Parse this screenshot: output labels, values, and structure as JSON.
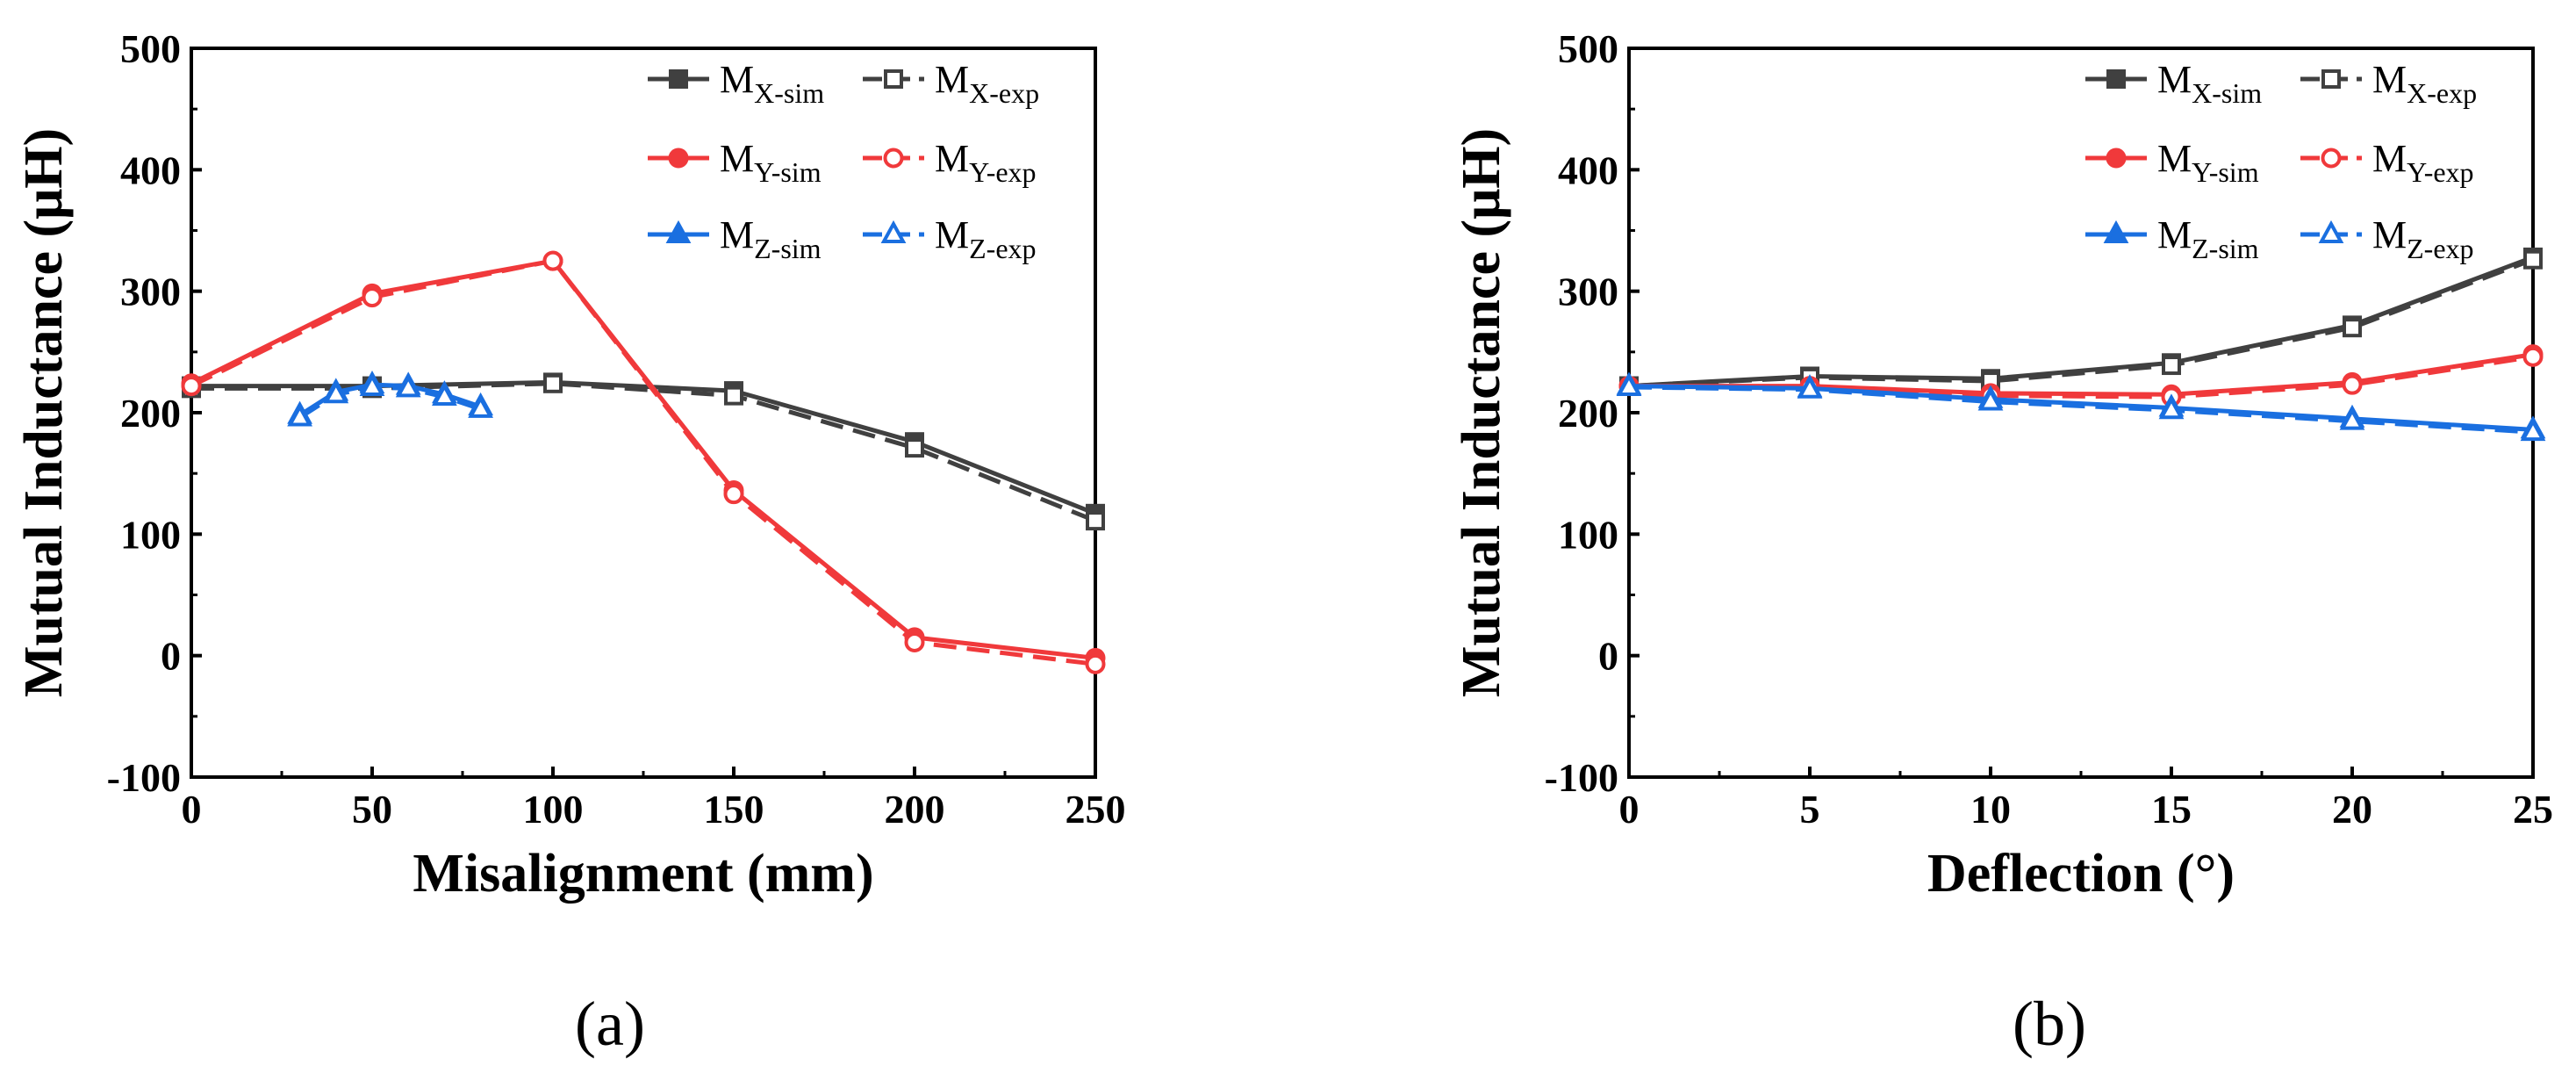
{
  "chart_data": [
    {
      "type": "line",
      "panel_label": "(a)",
      "xlabel": "Misalignment (mm)",
      "ylabel": "Mutual Inductance (μH)",
      "xlim": [
        0,
        250
      ],
      "ylim": [
        -100,
        500
      ],
      "xticks": [
        0,
        50,
        100,
        150,
        200,
        250
      ],
      "yticks": [
        -100,
        0,
        100,
        200,
        300,
        400,
        500
      ],
      "grid": false,
      "legend_position": "top-right",
      "series": [
        {
          "name": "M",
          "sub": "X-sim",
          "color": "#404040",
          "style": "solid",
          "marker": "square-filled",
          "x": [
            0,
            50,
            100,
            150,
            200,
            250
          ],
          "y": [
            222,
            222,
            225,
            218,
            176,
            117
          ]
        },
        {
          "name": "M",
          "sub": "X-exp",
          "color": "#404040",
          "style": "dashed",
          "marker": "square-open",
          "x": [
            0,
            50,
            100,
            150,
            200,
            250
          ],
          "y": [
            220,
            220,
            224,
            214,
            171,
            111
          ]
        },
        {
          "name": "M",
          "sub": "Y-sim",
          "color": "#f0393b",
          "style": "solid",
          "marker": "circle-filled",
          "x": [
            0,
            50,
            100,
            150,
            200,
            250
          ],
          "y": [
            224,
            298,
            325,
            136,
            15,
            -2
          ]
        },
        {
          "name": "M",
          "sub": "Y-exp",
          "color": "#f0393b",
          "style": "dashed",
          "marker": "circle-open",
          "x": [
            0,
            50,
            100,
            150,
            200,
            250
          ],
          "y": [
            222,
            295,
            325,
            133,
            11,
            -7
          ]
        },
        {
          "name": "M",
          "sub": "Z-sim",
          "color": "#1a6fe0",
          "style": "solid",
          "marker": "triangle-filled",
          "x": [
            30,
            40,
            50,
            60,
            70,
            80
          ],
          "y": [
            198,
            217,
            223,
            222,
            215,
            205
          ]
        },
        {
          "name": "M",
          "sub": "Z-exp",
          "color": "#1a6fe0",
          "style": "dashed",
          "marker": "triangle-open",
          "x": [
            30,
            40,
            50,
            60,
            70,
            80
          ],
          "y": [
            196,
            215,
            221,
            220,
            213,
            203
          ]
        }
      ]
    },
    {
      "type": "line",
      "panel_label": "(b)",
      "xlabel": "Deflection (°)",
      "ylabel": "Mutual Inductance (μH)",
      "xlim": [
        0,
        25
      ],
      "ylim": [
        -100,
        500
      ],
      "xticks": [
        0,
        5,
        10,
        15,
        20,
        25
      ],
      "yticks": [
        -100,
        0,
        100,
        200,
        300,
        400,
        500
      ],
      "grid": false,
      "legend_position": "top-right",
      "series": [
        {
          "name": "M",
          "sub": "X-sim",
          "color": "#404040",
          "style": "solid",
          "marker": "square-filled",
          "x": [
            0,
            5,
            10,
            15,
            20,
            25
          ],
          "y": [
            222,
            230,
            228,
            241,
            272,
            328
          ]
        },
        {
          "name": "M",
          "sub": "X-exp",
          "color": "#404040",
          "style": "dashed",
          "marker": "square-open",
          "x": [
            0,
            5,
            10,
            15,
            20,
            25
          ],
          "y": [
            222,
            229,
            226,
            239,
            270,
            326
          ]
        },
        {
          "name": "M",
          "sub": "Y-sim",
          "color": "#f0393b",
          "style": "solid",
          "marker": "circle-filled",
          "x": [
            0,
            5,
            10,
            15,
            20,
            25
          ],
          "y": [
            222,
            222,
            216,
            215,
            225,
            248
          ]
        },
        {
          "name": "M",
          "sub": "Y-exp",
          "color": "#f0393b",
          "style": "dashed",
          "marker": "circle-open",
          "x": [
            0,
            5,
            10,
            15,
            20,
            25
          ],
          "y": [
            222,
            221,
            214,
            213,
            223,
            246
          ]
        },
        {
          "name": "M",
          "sub": "Z-sim",
          "color": "#1a6fe0",
          "style": "solid",
          "marker": "triangle-filled",
          "x": [
            0,
            5,
            10,
            15,
            20,
            25
          ],
          "y": [
            222,
            220,
            211,
            204,
            195,
            186
          ]
        },
        {
          "name": "M",
          "sub": "Z-exp",
          "color": "#1a6fe0",
          "style": "dashed",
          "marker": "triangle-open",
          "x": [
            0,
            5,
            10,
            15,
            20,
            25
          ],
          "y": [
            221,
            219,
            209,
            202,
            193,
            184
          ]
        }
      ]
    }
  ]
}
